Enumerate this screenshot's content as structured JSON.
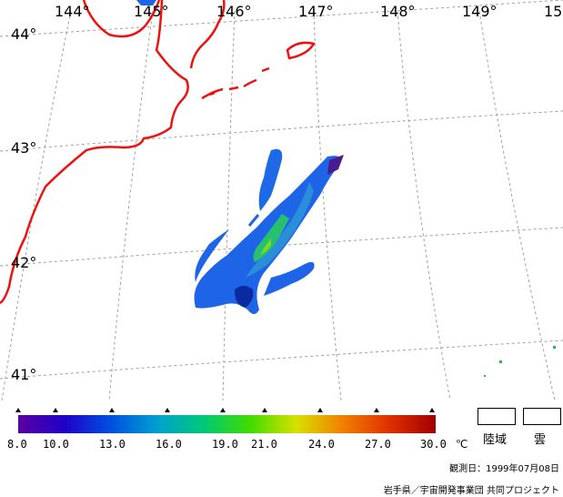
{
  "lon_labels": [
    "144°",
    "145°",
    "146°",
    "147°",
    "148°",
    "149°",
    "15"
  ],
  "lat_labels": [
    "44°",
    "43°",
    "42°",
    "41°"
  ],
  "colorbar": {
    "ticks": [
      "8.0",
      "10.0",
      "13.0",
      "16.0",
      "19.0",
      "21.0",
      "24.0",
      "27.0",
      "30.0"
    ],
    "unit": "℃",
    "colors": [
      "#5a00a0",
      "#2000c8",
      "#0050e0",
      "#00a0d0",
      "#00c878",
      "#40dc00",
      "#d8e000",
      "#f08000",
      "#e03000",
      "#a00000"
    ]
  },
  "legend": {
    "land_label": "陸域",
    "cloud_label": "雲"
  },
  "footer": {
    "observation": "観測日：1999年07月08日",
    "credit": "岩手県／宇宙開発事業団 共同プロジェクト"
  },
  "map_colors": {
    "coast": "#ee1111",
    "grid": "#a0a0a0",
    "sea": "#ffffff"
  }
}
